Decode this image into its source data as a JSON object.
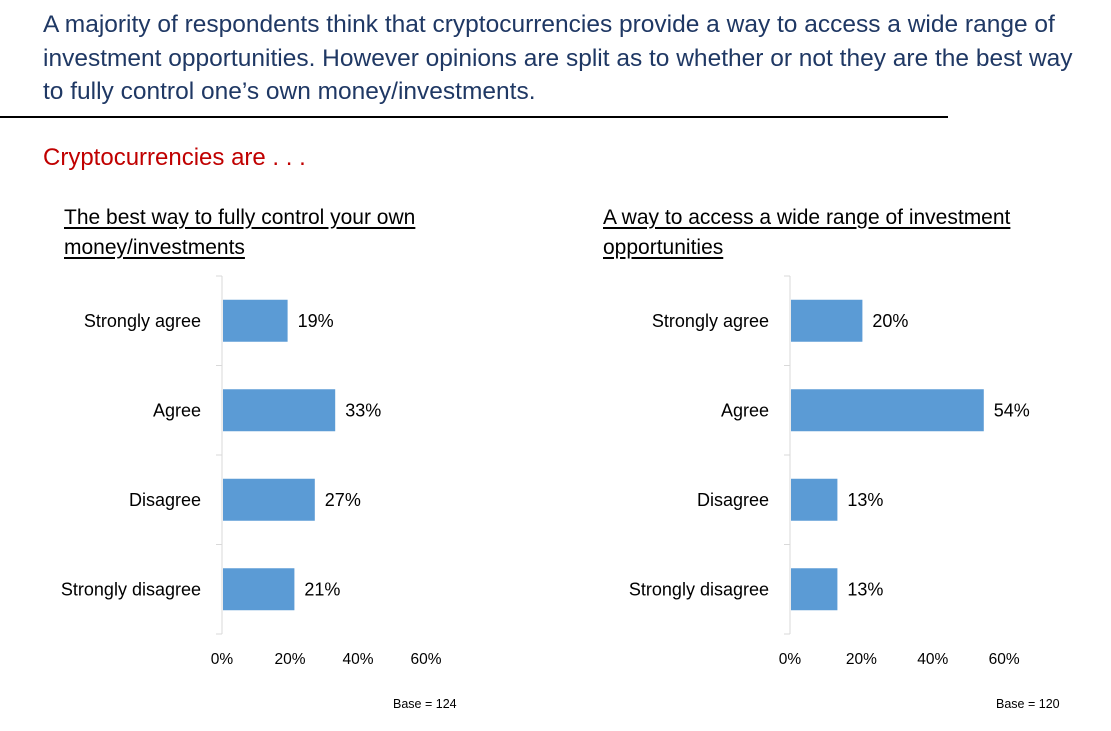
{
  "headline": "A majority of respondents think that cryptocurrencies provide a way to access a wide range of investment opportunities. However opinions are split as to whether or not they are the best way to fully control one’s own money/investments.",
  "subheading": "Cryptocurrencies are . . .",
  "colors": {
    "headline": "#1f3864",
    "subheading": "#c00000",
    "bar": "#5b9bd5"
  },
  "chart_data": [
    {
      "type": "bar",
      "orientation": "horizontal",
      "title": "The best way to fully control your own money/investments",
      "categories": [
        "Strongly agree",
        "Agree",
        "Disagree",
        "Strongly disagree"
      ],
      "values": [
        19,
        33,
        27,
        21
      ],
      "value_labels": [
        "19%",
        "33%",
        "27%",
        "21%"
      ],
      "xlim": [
        0,
        60
      ],
      "xticks": [
        "0%",
        "20%",
        "40%",
        "60%"
      ],
      "grid": false,
      "note": "Base = 124"
    },
    {
      "type": "bar",
      "orientation": "horizontal",
      "title": "A way to access a wide range of investment opportunities",
      "categories": [
        "Strongly agree",
        "Agree",
        "Disagree",
        "Strongly disagree"
      ],
      "values": [
        20,
        54,
        13,
        13
      ],
      "value_labels": [
        "20%",
        "54%",
        "13%",
        "13%"
      ],
      "xlim": [
        0,
        60
      ],
      "xticks": [
        "0%",
        "20%",
        "40%",
        "60%"
      ],
      "grid": false,
      "note": "Base = 120"
    }
  ]
}
